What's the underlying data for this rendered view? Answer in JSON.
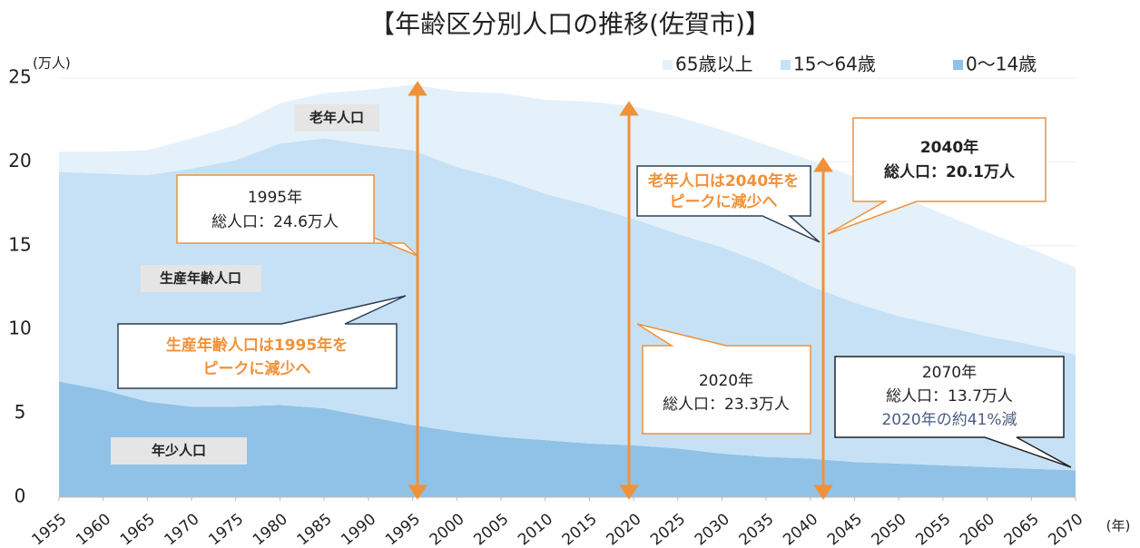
{
  "chart_data": {
    "type": "stacked_area",
    "title": "【年齢区分別人口の推移(佐賀市)】",
    "y_unit": "(万人)",
    "x_unit": "(年)",
    "x": [
      1955,
      1960,
      1965,
      1970,
      1975,
      1980,
      1985,
      1990,
      1995,
      2000,
      2005,
      2010,
      2015,
      2020,
      2025,
      2030,
      2035,
      2040,
      2045,
      2050,
      2055,
      2060,
      2065,
      2070
    ],
    "xlim": [
      1955,
      2070
    ],
    "xticks": [
      1955,
      1960,
      1965,
      1970,
      1975,
      1980,
      1985,
      1990,
      1995,
      2000,
      2005,
      2010,
      2015,
      2020,
      2025,
      2030,
      2035,
      2040,
      2045,
      2050,
      2055,
      2060,
      2065,
      2070
    ],
    "ylim": [
      0,
      25
    ],
    "yticks": [
      0,
      5,
      10,
      15,
      20,
      25
    ],
    "grid": true,
    "legend": "top-right",
    "series": [
      {
        "name": "0～14歳",
        "color": "#8fc2e6",
        "values": [
          6.9,
          6.4,
          5.7,
          5.4,
          5.4,
          5.5,
          5.3,
          4.8,
          4.3,
          3.9,
          3.6,
          3.4,
          3.2,
          3.1,
          2.9,
          2.6,
          2.4,
          2.3,
          2.1,
          2.0,
          1.9,
          1.8,
          1.7,
          1.6
        ]
      },
      {
        "name": "15～64歳",
        "color": "#c6e1f5",
        "values": [
          12.5,
          12.9,
          13.5,
          14.2,
          14.7,
          15.6,
          16.1,
          16.2,
          16.4,
          15.8,
          15.4,
          14.7,
          14.2,
          13.5,
          12.8,
          12.3,
          11.5,
          10.3,
          9.5,
          8.8,
          8.3,
          7.8,
          7.4,
          6.9
        ]
      },
      {
        "name": "65歳以上",
        "color": "#e4f1fa",
        "values": [
          1.2,
          1.3,
          1.5,
          1.8,
          2.1,
          2.4,
          2.7,
          3.3,
          3.9,
          4.5,
          5.1,
          5.6,
          6.2,
          6.7,
          7.0,
          7.0,
          7.1,
          7.5,
          7.5,
          7.2,
          6.7,
          6.2,
          5.7,
          5.2
        ]
      }
    ],
    "area_labels": [
      "老年人口",
      "生産年齢人口",
      "年少人口"
    ],
    "annotations": [
      {
        "lines": [
          "1995年",
          "総人口：24.6万人"
        ]
      },
      {
        "lines": [
          "生産年齢人口は1995年を",
          "ピークに減少へ"
        ]
      },
      {
        "lines": [
          "老年人口は2040年を",
          "ピークに減少へ"
        ]
      },
      {
        "lines": [
          "2040年",
          "総人口：20.1万人"
        ]
      },
      {
        "lines": [
          "2020年",
          "総人口：23.3万人"
        ]
      },
      {
        "lines": [
          "2070年",
          "総人口：13.7万人",
          "2020年の約41%減"
        ]
      }
    ]
  }
}
